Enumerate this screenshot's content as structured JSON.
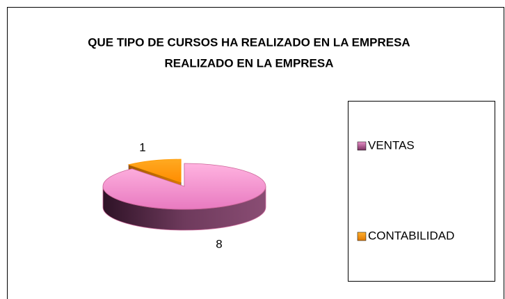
{
  "chart_data": {
    "type": "pie",
    "title": [
      "QUE TIPO DE CURSOS HA REALIZADO EN LA EMPRESA",
      "REALIZADO EN LA EMPRESA"
    ],
    "categories": [
      "VENTAS",
      "CONTABILIDAD"
    ],
    "values": [
      8,
      1
    ],
    "colors": [
      "#cc6699",
      "#ff9900"
    ]
  }
}
